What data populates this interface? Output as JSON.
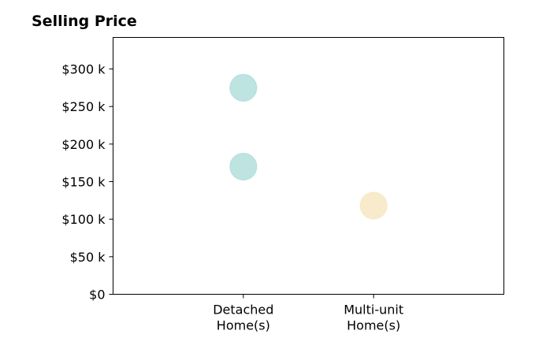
{
  "chart_data": {
    "type": "scatter",
    "title": "Selling Price",
    "xlabel": "",
    "ylabel": "",
    "categories": [
      [
        "Detached",
        "Home(s)"
      ],
      [
        "Multi-unit",
        "Home(s)"
      ]
    ],
    "y_ticks": [
      {
        "value": 0,
        "label": "$0"
      },
      {
        "value": 50000,
        "label": "$50 k"
      },
      {
        "value": 100000,
        "label": "$100 k"
      },
      {
        "value": 150000,
        "label": "$150 k"
      },
      {
        "value": 200000,
        "label": "$200 k"
      },
      {
        "value": 250000,
        "label": "$250 k"
      },
      {
        "value": 300000,
        "label": "$300 k"
      }
    ],
    "ylim": [
      0,
      342000
    ],
    "xlim": [
      -1,
      2
    ],
    "grid": false,
    "points": [
      {
        "category_index": 0,
        "value": 275000,
        "color": "#b2dfdb"
      },
      {
        "category_index": 0,
        "value": 170000,
        "color": "#b2dfdb"
      },
      {
        "category_index": 1,
        "value": 118000,
        "color": "#f7e8c3"
      }
    ]
  }
}
